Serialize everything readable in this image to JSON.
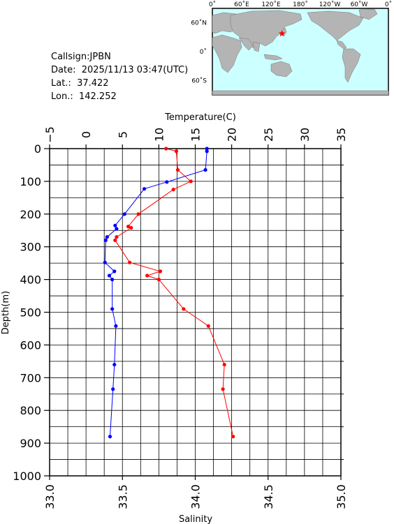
{
  "station": {
    "callsign": "Callsign:JPBN",
    "date": "Date:  2025/11/13 03:47(UTC)",
    "lat": "Lat.:  37.422",
    "lon": "Lon.:  142.252"
  },
  "map": {
    "lon_labels": [
      "0˚",
      "60˚E",
      "120˚E",
      "180˚",
      "120˚W",
      "60˚W",
      "0˚"
    ],
    "lat_labels": [
      "60˚N",
      "0˚",
      "60˚S"
    ],
    "ocean_color": "#ccffff",
    "land_color": "#b4b4b4",
    "marker_color": "#ff0000",
    "marker_icon": "star",
    "marker_lon": 142.252,
    "marker_lat": 37.422
  },
  "chart_data": {
    "type": "line",
    "ylabel": "Depth(m)",
    "ylim": [
      0,
      1000
    ],
    "y_reversed": true,
    "y_ticks": [
      "0",
      "100",
      "200",
      "300",
      "400",
      "500",
      "600",
      "700",
      "800",
      "900",
      "1000"
    ],
    "top_axis": {
      "label": "Temperature(C)",
      "range": [
        -5,
        35
      ],
      "ticks": [
        "−5",
        "0",
        "5",
        "10",
        "15",
        "20",
        "25",
        "30",
        "35"
      ]
    },
    "bottom_axis": {
      "label": "Salinity",
      "range": [
        33.0,
        35.0
      ],
      "ticks": [
        "33.0",
        "33.5",
        "34.0",
        "34.5",
        "35.0"
      ]
    },
    "grid": true,
    "series": [
      {
        "quantity": "temperature",
        "axis": "top",
        "color": "#0000ff",
        "points": [
          [
            16.6,
            0
          ],
          [
            16.6,
            8
          ],
          [
            16.4,
            65
          ],
          [
            11.1,
            102
          ],
          [
            8.0,
            123
          ],
          [
            5.3,
            200
          ],
          [
            4.0,
            235
          ],
          [
            4.2,
            245
          ],
          [
            2.9,
            270
          ],
          [
            2.7,
            280
          ],
          [
            2.6,
            348
          ],
          [
            3.9,
            375
          ],
          [
            3.2,
            388
          ],
          [
            3.6,
            400
          ],
          [
            3.6,
            490
          ],
          [
            4.1,
            542
          ],
          [
            3.9,
            660
          ],
          [
            3.7,
            735
          ],
          [
            3.3,
            880
          ]
        ]
      },
      {
        "quantity": "salinity",
        "axis": "bottom",
        "color": "#ff0000",
        "points": [
          [
            33.8,
            0
          ],
          [
            33.87,
            8
          ],
          [
            33.88,
            65
          ],
          [
            33.97,
            100
          ],
          [
            33.85,
            125
          ],
          [
            33.61,
            200
          ],
          [
            33.54,
            238
          ],
          [
            33.56,
            242
          ],
          [
            33.46,
            270
          ],
          [
            33.45,
            280
          ],
          [
            33.55,
            348
          ],
          [
            33.76,
            375
          ],
          [
            33.67,
            388
          ],
          [
            33.75,
            400
          ],
          [
            33.92,
            490
          ],
          [
            34.09,
            542
          ],
          [
            34.2,
            660
          ],
          [
            34.19,
            735
          ],
          [
            34.26,
            880
          ]
        ]
      }
    ]
  }
}
